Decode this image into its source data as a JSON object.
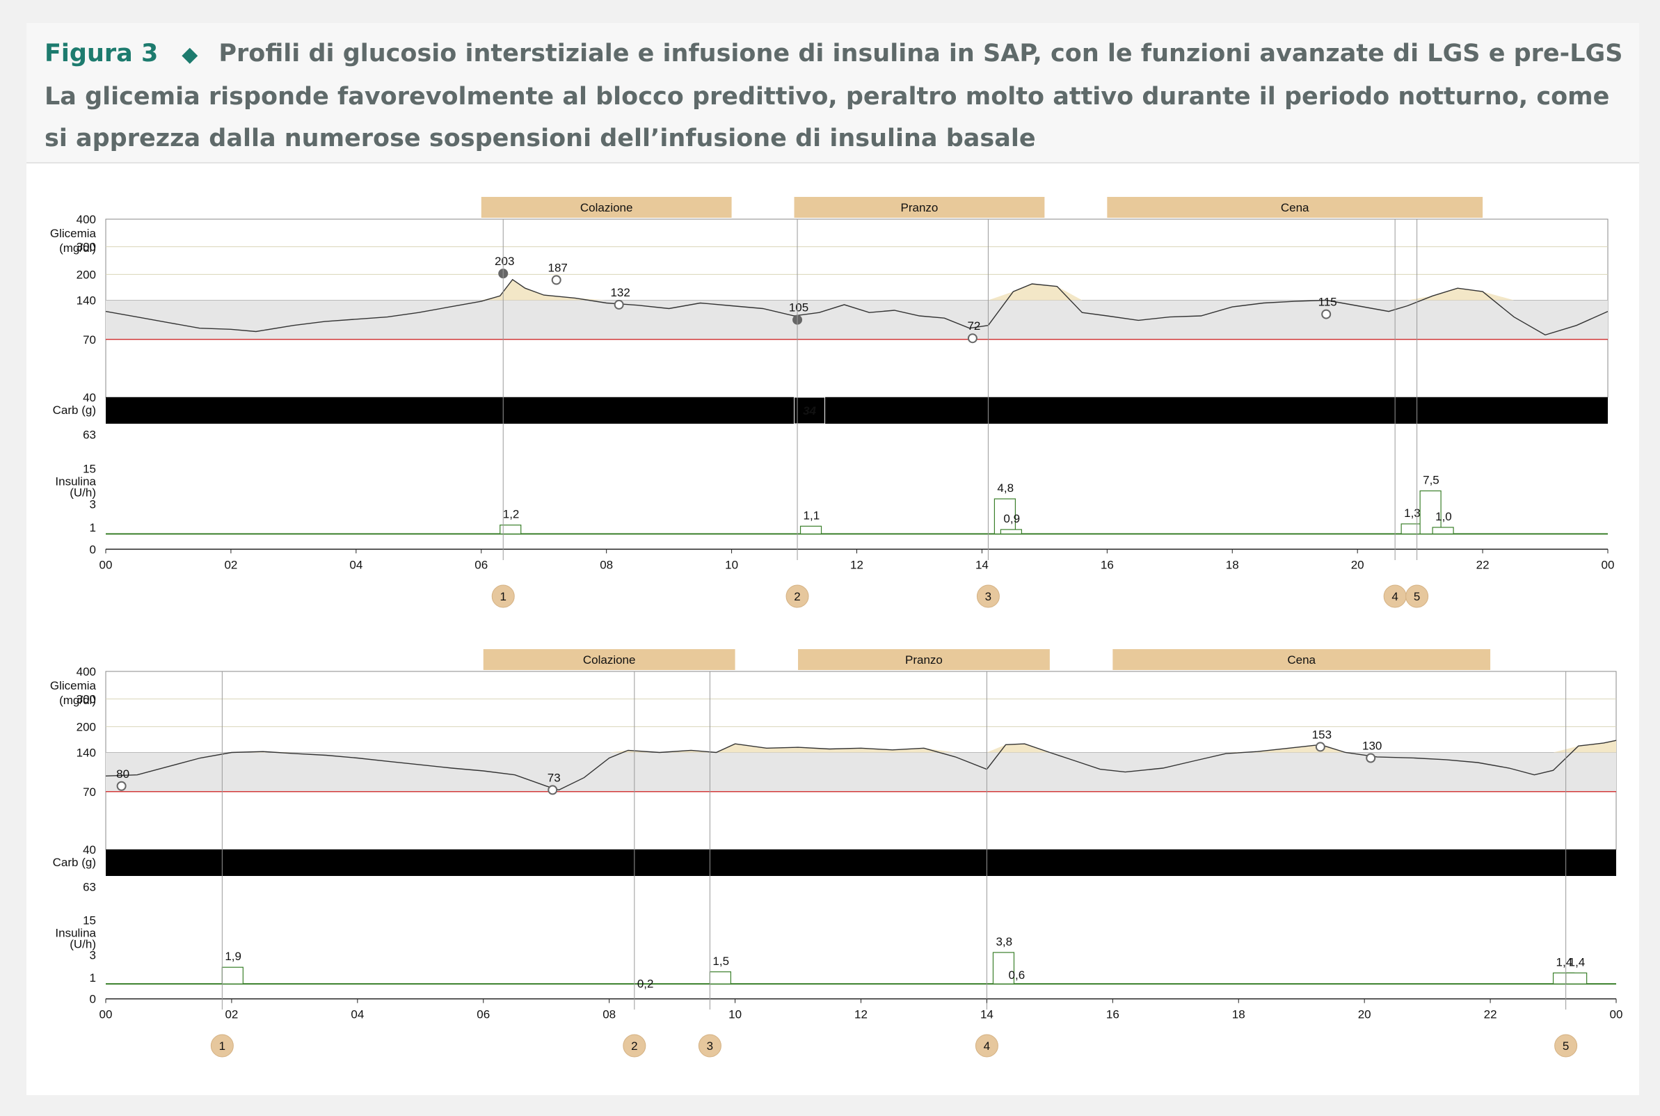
{
  "figure": {
    "label": "Figura 3",
    "text": "Profili di glucosio interstiziale e infusione di insulina in SAP, con le funzioni avanzate di LGS e pre-LGS La glicemia risponde favorevolmente al blocco predittivo, peraltro molto attivo durante il periodo notturno, come si apprezza dalla numerose sospensioni dell’infusione di insulina basale"
  },
  "colors": {
    "accent": "#1d7b6e",
    "caption_text": "#5f6a6a",
    "meal_band": "#e8c99a",
    "marker_circle": "#e6c79d",
    "low_line": "#d13a3a",
    "basal_green": "#3a7f2a",
    "suspend_blue": "#1f2f8f",
    "target_band": "#e6e6e6",
    "hyper_fill": "#f3e7c7",
    "yellow_tick": "#b78a2f"
  },
  "chart_data": [
    {
      "type": "line",
      "meals": [
        {
          "label": "Colazione",
          "start": 6.0,
          "end": 10.0
        },
        {
          "label": "Pranzo",
          "start": 11.0,
          "end": 15.0
        },
        {
          "label": "Cena",
          "start": 16.0,
          "end": 22.0
        }
      ],
      "glucose_axis": {
        "label_line1": "Glicemia",
        "label_line2": "(mg/dl)",
        "ticks": [
          400,
          300,
          200,
          140,
          70,
          40
        ],
        "target_range": [
          70,
          140
        ],
        "low_limit": 70
      },
      "carb_label": "Carb (g)",
      "carb_entries": [
        {
          "x": 11.0,
          "value": "34"
        }
      ],
      "insulin_axis": {
        "label_line1": "Insulina",
        "label_line2": "(U/h)",
        "ticks": [
          63,
          15,
          3,
          1,
          0
        ]
      },
      "x_ticks": [
        "00",
        "02",
        "04",
        "06",
        "08",
        "10",
        "12",
        "14",
        "16",
        "18",
        "20",
        "22",
        "00"
      ],
      "glucose_series": [
        [
          0.0,
          120
        ],
        [
          0.5,
          110
        ],
        [
          1.0,
          100
        ],
        [
          1.5,
          90
        ],
        [
          2.0,
          88
        ],
        [
          2.4,
          84
        ],
        [
          3.0,
          95
        ],
        [
          3.5,
          102
        ],
        [
          4.0,
          106
        ],
        [
          4.5,
          110
        ],
        [
          5.0,
          118
        ],
        [
          5.5,
          128
        ],
        [
          6.0,
          138
        ],
        [
          6.3,
          150
        ],
        [
          6.5,
          188
        ],
        [
          6.7,
          168
        ],
        [
          7.0,
          152
        ],
        [
          7.5,
          145
        ],
        [
          8.0,
          135
        ],
        [
          8.5,
          131
        ],
        [
          9.0,
          125
        ],
        [
          9.5,
          135
        ],
        [
          10.0,
          130
        ],
        [
          10.5,
          125
        ],
        [
          11.0,
          112
        ],
        [
          11.4,
          118
        ],
        [
          11.8,
          132
        ],
        [
          12.2,
          118
        ],
        [
          12.6,
          122
        ],
        [
          13.0,
          112
        ],
        [
          13.4,
          108
        ],
        [
          13.8,
          90
        ],
        [
          14.1,
          95
        ],
        [
          14.5,
          160
        ],
        [
          14.8,
          178
        ],
        [
          15.2,
          172
        ],
        [
          15.6,
          118
        ],
        [
          16.0,
          112
        ],
        [
          16.5,
          104
        ],
        [
          17.0,
          110
        ],
        [
          17.5,
          112
        ],
        [
          18.0,
          128
        ],
        [
          18.5,
          135
        ],
        [
          19.0,
          138
        ],
        [
          19.5,
          140
        ],
        [
          20.0,
          130
        ],
        [
          20.5,
          120
        ],
        [
          20.8,
          130
        ],
        [
          21.2,
          150
        ],
        [
          21.6,
          168
        ],
        [
          22.0,
          160
        ],
        [
          22.5,
          110
        ],
        [
          23.0,
          78
        ],
        [
          23.5,
          95
        ],
        [
          24.0,
          120
        ]
      ],
      "glucose_points": [
        {
          "x": 6.35,
          "value": 203,
          "label": "203",
          "style": "filled"
        },
        {
          "x": 7.2,
          "value": 187,
          "label": "187",
          "style": "open"
        },
        {
          "x": 8.2,
          "value": 132,
          "label": "132",
          "style": "open"
        },
        {
          "x": 11.05,
          "value": 105,
          "label": "105",
          "style": "filled"
        },
        {
          "x": 13.85,
          "value": 72,
          "label": "72",
          "style": "open"
        },
        {
          "x": 19.5,
          "value": 115,
          "label": "115",
          "style": "open"
        }
      ],
      "insulin_labels": [
        {
          "x": 6.3,
          "value": "1,2"
        },
        {
          "x": 11.1,
          "value": "1,1"
        },
        {
          "x": 14.2,
          "value": "4,8"
        },
        {
          "x": 14.3,
          "value": "0,9"
        },
        {
          "x": 20.7,
          "value": "1,3"
        },
        {
          "x": 21.0,
          "value": "7,5"
        },
        {
          "x": 21.2,
          "value": "1,0"
        }
      ],
      "markers": [
        {
          "x": 6.35,
          "label": "1"
        },
        {
          "x": 11.05,
          "label": "2"
        },
        {
          "x": 14.1,
          "label": "3"
        },
        {
          "x": 20.6,
          "label": "4"
        },
        {
          "x": 20.95,
          "label": "5"
        }
      ]
    },
    {
      "type": "line",
      "meals": [
        {
          "label": "Colazione",
          "start": 6.0,
          "end": 10.0
        },
        {
          "label": "Pranzo",
          "start": 11.0,
          "end": 15.0
        },
        {
          "label": "Cena",
          "start": 16.0,
          "end": 22.0
        }
      ],
      "glucose_axis": {
        "label_line1": "Glicemia",
        "label_line2": "(mg/dl)",
        "ticks": [
          400,
          300,
          200,
          140,
          70,
          40
        ],
        "target_range": [
          70,
          140
        ],
        "low_limit": 70
      },
      "carb_label": "Carb (g)",
      "carb_entries": [],
      "insulin_axis": {
        "label_line1": "Insulina",
        "label_line2": "(U/h)",
        "ticks": [
          63,
          15,
          3,
          1,
          0
        ]
      },
      "x_ticks": [
        "00",
        "02",
        "04",
        "06",
        "08",
        "10",
        "12",
        "14",
        "16",
        "18",
        "20",
        "22",
        "00"
      ],
      "glucose_series": [
        [
          0.0,
          98
        ],
        [
          0.5,
          100
        ],
        [
          1.0,
          115
        ],
        [
          1.5,
          130
        ],
        [
          2.0,
          140
        ],
        [
          2.5,
          142
        ],
        [
          3.0,
          138
        ],
        [
          3.5,
          135
        ],
        [
          4.0,
          130
        ],
        [
          4.5,
          124
        ],
        [
          5.0,
          118
        ],
        [
          5.5,
          112
        ],
        [
          6.0,
          107
        ],
        [
          6.5,
          100
        ],
        [
          7.0,
          80
        ],
        [
          7.2,
          73
        ],
        [
          7.6,
          95
        ],
        [
          8.0,
          130
        ],
        [
          8.3,
          145
        ],
        [
          8.8,
          140
        ],
        [
          9.3,
          145
        ],
        [
          9.7,
          140
        ],
        [
          10.0,
          160
        ],
        [
          10.5,
          150
        ],
        [
          11.0,
          152
        ],
        [
          11.5,
          148
        ],
        [
          12.0,
          150
        ],
        [
          12.5,
          146
        ],
        [
          13.0,
          150
        ],
        [
          13.5,
          132
        ],
        [
          14.0,
          110
        ],
        [
          14.3,
          158
        ],
        [
          14.6,
          160
        ],
        [
          15.0,
          140
        ],
        [
          15.4,
          125
        ],
        [
          15.8,
          110
        ],
        [
          16.2,
          105
        ],
        [
          16.8,
          112
        ],
        [
          17.3,
          125
        ],
        [
          17.8,
          138
        ],
        [
          18.3,
          142
        ],
        [
          18.8,
          150
        ],
        [
          19.3,
          158
        ],
        [
          19.7,
          140
        ],
        [
          20.2,
          132
        ],
        [
          20.8,
          130
        ],
        [
          21.3,
          127
        ],
        [
          21.8,
          122
        ],
        [
          22.3,
          112
        ],
        [
          22.7,
          100
        ],
        [
          23.0,
          108
        ],
        [
          23.4,
          155
        ],
        [
          23.8,
          162
        ],
        [
          24.0,
          168
        ]
      ],
      "glucose_points": [
        {
          "x": 0.25,
          "value": 80,
          "label": "80",
          "style": "open"
        },
        {
          "x": 7.1,
          "value": 73,
          "label": "73",
          "style": "open"
        },
        {
          "x": 19.3,
          "value": 153,
          "label": "153",
          "style": "open"
        },
        {
          "x": 20.1,
          "value": 130,
          "label": "130",
          "style": "open"
        }
      ],
      "insulin_labels": [
        {
          "x": 1.85,
          "value": "1,9"
        },
        {
          "x": 8.4,
          "value": "0,2"
        },
        {
          "x": 9.6,
          "value": "1,5"
        },
        {
          "x": 14.1,
          "value": "3,8"
        },
        {
          "x": 14.3,
          "value": "0,6"
        },
        {
          "x": 23.0,
          "value": "1,4"
        },
        {
          "x": 23.2,
          "value": "1,4"
        }
      ],
      "markers": [
        {
          "x": 1.85,
          "label": "1"
        },
        {
          "x": 8.4,
          "label": "2"
        },
        {
          "x": 9.6,
          "label": "3"
        },
        {
          "x": 14.0,
          "label": "4"
        },
        {
          "x": 23.2,
          "label": "5"
        }
      ]
    }
  ]
}
